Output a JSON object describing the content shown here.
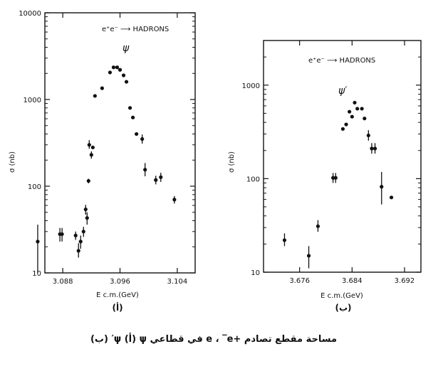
{
  "caption": "مساحة مقطع تصادم +e ، ‾e في قطاعي ψ (أ) ψ′ (ب)",
  "chart_data": [
    {
      "type": "scatter",
      "panel_label": "(أ)",
      "reaction_label": "e⁺e⁻ ⟶ HADRONS",
      "peak_label": "ψ",
      "xlabel": "E c.m.(GeV)",
      "ylabel": "σ (nb)",
      "yscale": "log",
      "xlim": [
        3.0855,
        3.1065
      ],
      "ylim": [
        10,
        10000
      ],
      "xticks": [
        3.088,
        3.096,
        3.104
      ],
      "xtick_labels": [
        "3.088",
        "3.096",
        "3.104"
      ],
      "yticks": [
        10,
        100,
        1000,
        10000
      ],
      "ytick_labels": [
        "10",
        "100",
        "1000",
        "10000"
      ],
      "points": [
        {
          "x": 3.0845,
          "y": 23,
          "ylo": 10,
          "yhi": 36
        },
        {
          "x": 3.0876,
          "y": 28,
          "ylo": 23,
          "yhi": 33
        },
        {
          "x": 3.0879,
          "y": 28,
          "ylo": 23,
          "yhi": 33
        },
        {
          "x": 3.0898,
          "y": 27,
          "ylo": 24,
          "yhi": 30
        },
        {
          "x": 3.0902,
          "y": 18,
          "ylo": 15,
          "yhi": 22
        },
        {
          "x": 3.0905,
          "y": 23,
          "ylo": 19,
          "yhi": 27
        },
        {
          "x": 3.0909,
          "y": 30,
          "ylo": 26,
          "yhi": 34
        },
        {
          "x": 3.0912,
          "y": 54,
          "ylo": 47,
          "yhi": 61
        },
        {
          "x": 3.0914,
          "y": 43,
          "ylo": 36,
          "yhi": 50
        },
        {
          "x": 3.0916,
          "y": 115,
          "ylo": 108,
          "yhi": 122
        },
        {
          "x": 3.0917,
          "y": 300,
          "ylo": 270,
          "yhi": 340
        },
        {
          "x": 3.092,
          "y": 230,
          "ylo": 208,
          "yhi": 252
        },
        {
          "x": 3.0922,
          "y": 280
        },
        {
          "x": 3.0925,
          "y": 1100
        },
        {
          "x": 3.0935,
          "y": 1350
        },
        {
          "x": 3.0946,
          "y": 2050
        },
        {
          "x": 3.0951,
          "y": 2350
        },
        {
          "x": 3.0956,
          "y": 2350
        },
        {
          "x": 3.096,
          "y": 2200
        },
        {
          "x": 3.0965,
          "y": 1900
        },
        {
          "x": 3.0969,
          "y": 1600
        },
        {
          "x": 3.0974,
          "y": 800
        },
        {
          "x": 3.0978,
          "y": 620
        },
        {
          "x": 3.0983,
          "y": 400
        },
        {
          "x": 3.0991,
          "y": 350,
          "ylo": 310,
          "yhi": 395
        },
        {
          "x": 3.0995,
          "y": 155,
          "ylo": 130,
          "yhi": 185
        },
        {
          "x": 3.101,
          "y": 118,
          "ylo": 105,
          "yhi": 132
        },
        {
          "x": 3.1017,
          "y": 127,
          "ylo": 112,
          "yhi": 143
        },
        {
          "x": 3.1036,
          "y": 70,
          "ylo": 63,
          "yhi": 77
        }
      ]
    },
    {
      "type": "scatter",
      "panel_label": "(ب)",
      "reaction_label": "e⁺e⁻ ⟶ HADRONS",
      "peak_label": "ψ′",
      "xlabel": "E c.m.(GeV)",
      "ylabel": "σ (nb)",
      "yscale": "log",
      "xlim": [
        3.6705,
        3.6945
      ],
      "ylim": [
        10,
        3000
      ],
      "xticks": [
        3.676,
        3.684,
        3.692
      ],
      "xtick_labels": [
        "3.676",
        "3.684",
        "3.692"
      ],
      "yticks": [
        10,
        100,
        1000
      ],
      "ytick_labels": [
        "10",
        "100",
        "1000"
      ],
      "points": [
        {
          "x": 3.6737,
          "y": 22,
          "ylo": 19,
          "yhi": 26
        },
        {
          "x": 3.6774,
          "y": 15,
          "ylo": 11,
          "yhi": 19
        },
        {
          "x": 3.6788,
          "y": 31,
          "ylo": 27,
          "yhi": 36
        },
        {
          "x": 3.6811,
          "y": 102,
          "ylo": 90,
          "yhi": 115
        },
        {
          "x": 3.6815,
          "y": 102,
          "ylo": 90,
          "yhi": 115
        },
        {
          "x": 3.6826,
          "y": 340
        },
        {
          "x": 3.6831,
          "y": 380
        },
        {
          "x": 3.6836,
          "y": 520
        },
        {
          "x": 3.684,
          "y": 460
        },
        {
          "x": 3.6844,
          "y": 650
        },
        {
          "x": 3.6848,
          "y": 560
        },
        {
          "x": 3.6855,
          "y": 560
        },
        {
          "x": 3.6859,
          "y": 440
        },
        {
          "x": 3.6865,
          "y": 290,
          "ylo": 255,
          "yhi": 330
        },
        {
          "x": 3.687,
          "y": 210,
          "ylo": 185,
          "yhi": 240
        },
        {
          "x": 3.6875,
          "y": 210,
          "ylo": 185,
          "yhi": 240
        },
        {
          "x": 3.6885,
          "y": 82,
          "ylo": 53,
          "yhi": 118
        },
        {
          "x": 3.69,
          "y": 63
        }
      ]
    }
  ]
}
